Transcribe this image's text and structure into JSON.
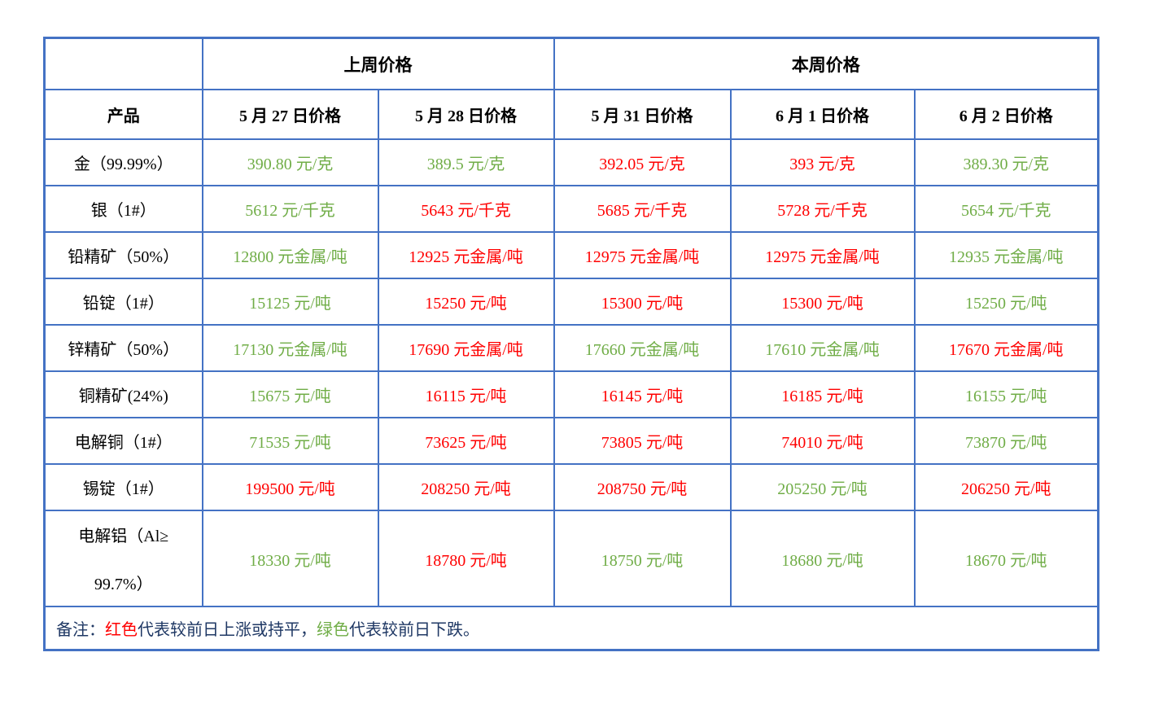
{
  "colors": {
    "red": "#ff0000",
    "green": "#70ad47",
    "navy": "#1f3864",
    "black": "#000000",
    "border": "#4472c4"
  },
  "table": {
    "week_groups": [
      {
        "label": "上周价格"
      },
      {
        "label": "本周价格"
      }
    ],
    "product_header": "产品",
    "date_headers": [
      "5 月 27 日价格",
      "5 月 28 日价格",
      "5 月 31 日价格",
      "6 月 1 日价格",
      "6 月 2 日价格"
    ],
    "rows": [
      {
        "label": "金（99.99%）",
        "cells": [
          {
            "text": "390.80 元/克",
            "color": "green"
          },
          {
            "text": "389.5 元/克",
            "color": "green"
          },
          {
            "text": "392.05 元/克",
            "color": "red"
          },
          {
            "text": "393 元/克",
            "color": "red"
          },
          {
            "text": "389.30 元/克",
            "color": "green"
          }
        ]
      },
      {
        "label": "银（1#）",
        "cells": [
          {
            "text": "5612 元/千克",
            "color": "green"
          },
          {
            "text": "5643 元/千克",
            "color": "red"
          },
          {
            "text": "5685 元/千克",
            "color": "red"
          },
          {
            "text": "5728 元/千克",
            "color": "red"
          },
          {
            "text": "5654 元/千克",
            "color": "green"
          }
        ]
      },
      {
        "label": "铅精矿（50%）",
        "cells": [
          {
            "text": "12800 元金属/吨",
            "color": "green"
          },
          {
            "text": "12925 元金属/吨",
            "color": "red"
          },
          {
            "text": "12975 元金属/吨",
            "color": "red"
          },
          {
            "text": "12975 元金属/吨",
            "color": "red"
          },
          {
            "text": "12935 元金属/吨",
            "color": "green"
          }
        ]
      },
      {
        "label": "铅锭（1#）",
        "cells": [
          {
            "text": "15125 元/吨",
            "color": "green"
          },
          {
            "text": "15250 元/吨",
            "color": "red"
          },
          {
            "text": "15300 元/吨",
            "color": "red"
          },
          {
            "text": "15300 元/吨",
            "color": "red"
          },
          {
            "text": "15250 元/吨",
            "color": "green"
          }
        ]
      },
      {
        "label": "锌精矿（50%）",
        "cells": [
          {
            "text": "17130 元金属/吨",
            "color": "green"
          },
          {
            "text": "17690 元金属/吨",
            "color": "red"
          },
          {
            "text": "17660 元金属/吨",
            "color": "green"
          },
          {
            "text": "17610 元金属/吨",
            "color": "green"
          },
          {
            "text": "17670 元金属/吨",
            "color": "red"
          }
        ]
      },
      {
        "label": "铜精矿(24%)",
        "cells": [
          {
            "text": "15675 元/吨",
            "color": "green"
          },
          {
            "text": "16115 元/吨",
            "color": "red"
          },
          {
            "text": "16145 元/吨",
            "color": "red"
          },
          {
            "text": "16185 元/吨",
            "color": "red"
          },
          {
            "text": "16155 元/吨",
            "color": "green"
          }
        ]
      },
      {
        "label": "电解铜（1#）",
        "cells": [
          {
            "text": "71535 元/吨",
            "color": "green"
          },
          {
            "text": "73625 元/吨",
            "color": "red"
          },
          {
            "text": "73805 元/吨",
            "color": "red"
          },
          {
            "text": "74010 元/吨",
            "color": "red"
          },
          {
            "text": "73870 元/吨",
            "color": "green"
          }
        ]
      },
      {
        "label": "锡锭（1#）",
        "cells": [
          {
            "text": "199500 元/吨",
            "color": "red"
          },
          {
            "text": "208250 元/吨",
            "color": "red"
          },
          {
            "text": "208750 元/吨",
            "color": "red"
          },
          {
            "text": "205250 元/吨",
            "color": "green"
          },
          {
            "text": "206250 元/吨",
            "color": "red"
          }
        ]
      },
      {
        "label_line1": "电解铝（Al≥",
        "label_line2": "99.7%）",
        "cells": [
          {
            "text": "18330 元/吨",
            "color": "green"
          },
          {
            "text": "18780 元/吨",
            "color": "red"
          },
          {
            "text": "18750 元/吨",
            "color": "green"
          },
          {
            "text": "18680 元/吨",
            "color": "green"
          },
          {
            "text": "18670 元/吨",
            "color": "green"
          }
        ]
      }
    ],
    "note_segments": [
      {
        "text": "备注：",
        "color": "navy"
      },
      {
        "text": "红色",
        "color": "red"
      },
      {
        "text": "代表较前日上涨或持平，",
        "color": "navy"
      },
      {
        "text": "绿色",
        "color": "green"
      },
      {
        "text": "代表较前日下跌。",
        "color": "navy"
      }
    ]
  }
}
